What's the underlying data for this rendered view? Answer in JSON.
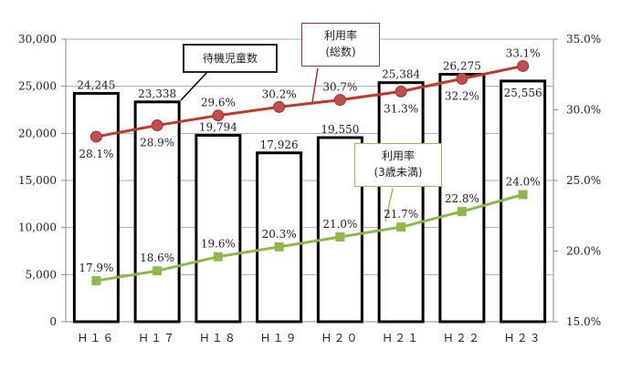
{
  "chart_data": {
    "type": "bar",
    "categories": [
      "Ｈ１６",
      "Ｈ１７",
      "Ｈ１８",
      "Ｈ１９",
      "Ｈ２０",
      "Ｈ２１",
      "Ｈ２２",
      "Ｈ２３"
    ],
    "series": [
      {
        "name": "待機児童数",
        "type": "bar",
        "axis": "left",
        "values": [
          24245,
          23338,
          19794,
          17926,
          19550,
          25384,
          26275,
          25556
        ],
        "labels": [
          "24,245",
          "23,338",
          "19,794",
          "17,926",
          "19,550",
          "25,384",
          "26,275",
          "25,556"
        ],
        "color": "#000000"
      },
      {
        "name": "利用率(総数)",
        "type": "line",
        "axis": "right",
        "values": [
          28.1,
          28.9,
          29.6,
          30.2,
          30.7,
          31.3,
          32.2,
          33.1
        ],
        "labels": [
          "28.1%",
          "28.9%",
          "29.6%",
          "30.2%",
          "30.7%",
          "31.3%",
          "32.2%",
          "33.1%"
        ],
        "color": "#c0392b"
      },
      {
        "name": "利用率(3歳未満)",
        "type": "line",
        "axis": "right",
        "values": [
          17.9,
          18.6,
          19.6,
          20.3,
          21.0,
          21.7,
          22.8,
          24.0
        ],
        "labels": [
          "17.9%",
          "18.6%",
          "19.6%",
          "20.3%",
          "21.0%",
          "21.7%",
          "22.8%",
          "24.0%"
        ],
        "color": "#8db84a"
      }
    ],
    "ylim": [
      0,
      30000
    ],
    "y2lim": [
      15.0,
      35.0
    ],
    "yticks": [
      "0",
      "5,000",
      "10,000",
      "15,000",
      "20,000",
      "25,000",
      "30,000"
    ],
    "y2ticks": [
      "15.0%",
      "20.0%",
      "25.0%",
      "30.0%",
      "35.0%"
    ],
    "grid": true
  },
  "callouts": {
    "waiting": "待機児童数",
    "total_line1": "利用率",
    "total_line2": "(総数)",
    "under3_line1": "利用率",
    "under3_line2": "(3歳未満)"
  }
}
